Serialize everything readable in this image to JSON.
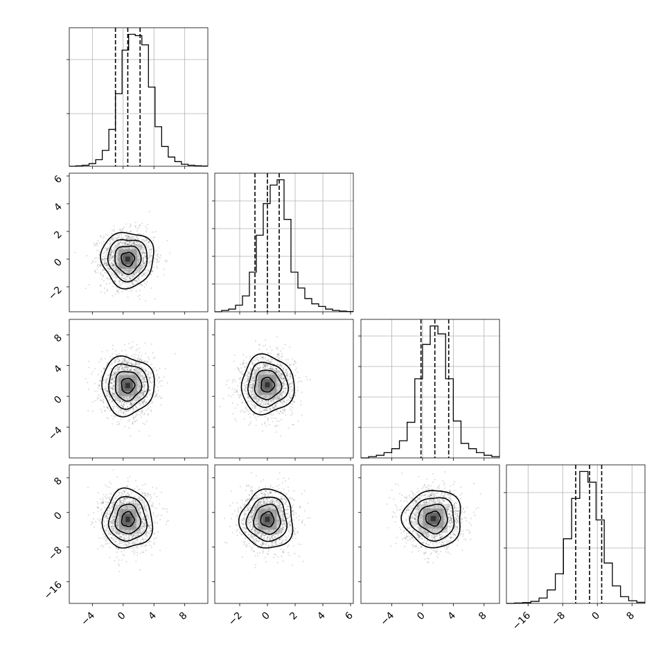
{
  "chart_data": {
    "type": "corner",
    "n_params": 4,
    "params": [
      {
        "range": [
          -7,
          11
        ],
        "ticks": [
          -4,
          0,
          4,
          8
        ],
        "hist": [
          0,
          0.003,
          0.008,
          0.02,
          0.05,
          0.12,
          0.28,
          0.55,
          0.88,
          1.0,
          0.99,
          0.92,
          0.6,
          0.3,
          0.15,
          0.07,
          0.035,
          0.015,
          0.008,
          0.004,
          0.002
        ],
        "quantiles": [
          -1.0,
          0.6,
          2.2
        ]
      },
      {
        "range": [
          -3.8,
          6.2
        ],
        "ticks": [
          -2,
          0,
          2,
          4,
          6
        ],
        "hist": [
          0,
          0.01,
          0.02,
          0.05,
          0.12,
          0.3,
          0.58,
          0.82,
          0.96,
          1.0,
          0.7,
          0.3,
          0.18,
          0.1,
          0.06,
          0.04,
          0.02,
          0.01,
          0.005,
          0.002
        ],
        "quantiles": [
          -0.9,
          0.0,
          0.85
        ]
      },
      {
        "range": [
          -8,
          10
        ],
        "ticks": [
          -4,
          0,
          4,
          8
        ],
        "hist": [
          0,
          0.01,
          0.02,
          0.04,
          0.07,
          0.13,
          0.27,
          0.6,
          0.86,
          1.0,
          0.94,
          0.6,
          0.28,
          0.11,
          0.07,
          0.04,
          0.02,
          0.01
        ],
        "quantiles": [
          -0.2,
          1.6,
          3.4
        ]
      },
      {
        "range": [
          -21,
          11
        ],
        "ticks": [
          -16,
          -8,
          0,
          8
        ],
        "hist": [
          0,
          0.003,
          0.006,
          0.015,
          0.04,
          0.1,
          0.22,
          0.48,
          0.78,
          0.98,
          0.9,
          0.62,
          0.3,
          0.13,
          0.05,
          0.02,
          0.008
        ],
        "quantiles": [
          -5.0,
          -1.8,
          1.0
        ]
      }
    ],
    "hist_yticks": [
      [
        0.38,
        0.77
      ],
      [
        0.2,
        0.4,
        0.6,
        0.8
      ],
      [
        0.22,
        0.44,
        0.66,
        0.88
      ],
      [
        0.4,
        0.8
      ]
    ],
    "contour_levels": [
      "0.5",
      "1",
      "1.5",
      "2"
    ],
    "joint": [
      {
        "x": 0,
        "y": 1,
        "cx": 0.6,
        "cy": 0.0,
        "sx": 1.7,
        "sy": 1.0
      },
      {
        "x": 0,
        "y": 2,
        "cx": 0.6,
        "cy": 1.4,
        "sx": 1.7,
        "sy": 1.9
      },
      {
        "x": 1,
        "y": 2,
        "cx": 0.0,
        "cy": 1.5,
        "sx": 0.95,
        "sy": 1.9
      },
      {
        "x": 0,
        "y": 3,
        "cx": 0.6,
        "cy": -1.6,
        "sx": 1.6,
        "sy": 3.4
      },
      {
        "x": 1,
        "y": 3,
        "cx": 0.0,
        "cy": -1.6,
        "sx": 0.95,
        "sy": 3.4
      },
      {
        "x": 2,
        "y": 3,
        "cx": 1.4,
        "cy": -1.4,
        "sx": 1.9,
        "sy": 3.3
      }
    ],
    "grid": true
  }
}
